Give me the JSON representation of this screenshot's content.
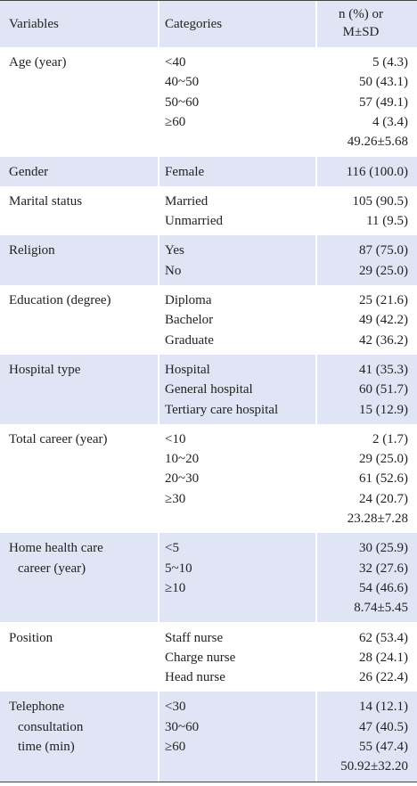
{
  "table": {
    "header": {
      "variables": "Variables",
      "categories": "Categories",
      "values": [
        "n (%) or",
        "M±SD"
      ]
    },
    "rows": [
      {
        "variable": [
          "Age (year)"
        ],
        "categories": [
          "<40",
          "40~50",
          "50~60",
          "≥60"
        ],
        "values": [
          "5 (4.3)",
          "50 (43.1)",
          "57 (49.1)",
          "4 (3.4)",
          "49.26±5.68"
        ]
      },
      {
        "variable": [
          "Gender"
        ],
        "categories": [
          "Female"
        ],
        "values": [
          "116 (100.0)"
        ]
      },
      {
        "variable": [
          "Marital status"
        ],
        "categories": [
          "Married",
          "Unmarried"
        ],
        "values": [
          "105 (90.5)",
          "11 (9.5)"
        ]
      },
      {
        "variable": [
          "Religion"
        ],
        "categories": [
          "Yes",
          "No"
        ],
        "values": [
          "87 (75.0)",
          "29 (25.0)"
        ]
      },
      {
        "variable": [
          "Education (degree)"
        ],
        "categories": [
          "Diploma",
          "Bachelor",
          "Graduate"
        ],
        "values": [
          "25 (21.6)",
          "49 (42.2)",
          "42 (36.2)"
        ]
      },
      {
        "variable": [
          "Hospital type"
        ],
        "categories": [
          "Hospital",
          "General hospital",
          "Tertiary care hospital"
        ],
        "values": [
          "41 (35.3)",
          "60 (51.7)",
          "15 (12.9)"
        ]
      },
      {
        "variable": [
          "Total career (year)"
        ],
        "categories": [
          "<10",
          "10~20",
          "20~30",
          "≥30"
        ],
        "values": [
          "2 (1.7)",
          "29 (25.0)",
          "61 (52.6)",
          "24 (20.7)",
          "23.28±7.28"
        ]
      },
      {
        "variable": [
          "Home health care",
          "career (year)"
        ],
        "categories": [
          "<5",
          "5~10",
          "≥10"
        ],
        "values": [
          "30 (25.9)",
          "32 (27.6)",
          "54 (46.6)",
          "8.74±5.45"
        ]
      },
      {
        "variable": [
          "Position"
        ],
        "categories": [
          "Staff nurse",
          "Charge nurse",
          "Head nurse"
        ],
        "values": [
          "62 (53.4)",
          "28 (24.1)",
          "26 (22.4)"
        ]
      },
      {
        "variable": [
          "Telephone",
          "consultation",
          "time (min)"
        ],
        "categories": [
          "<30",
          "30~60",
          "≥60"
        ],
        "values": [
          "14 (12.1)",
          "47 (40.5)",
          "55 (47.4)",
          "50.92±32.20"
        ]
      }
    ]
  }
}
